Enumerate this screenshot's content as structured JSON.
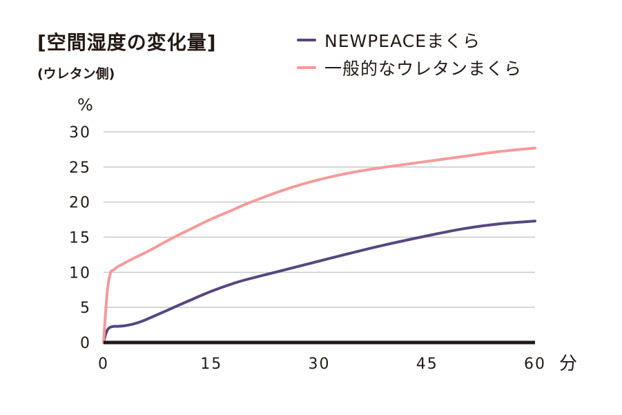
{
  "title": "[空間湿度の変化量]",
  "subtitle": "(ウレタン側)",
  "colors": {
    "newpeace": "#574680",
    "urethane": "#f59a9a",
    "axis": "#231815",
    "grid": "#c8c8c8"
  },
  "chart_data": {
    "type": "line",
    "ylabel": "%",
    "xlabel": "分",
    "xlim": [
      0,
      60
    ],
    "ylim": [
      0,
      30
    ],
    "xticks": [
      0,
      15,
      30,
      45,
      60
    ],
    "yticks": [
      0,
      5,
      10,
      15,
      20,
      25,
      30
    ],
    "grid": true,
    "legend": "top-right",
    "series": [
      {
        "name": "NEWPEACEまくら",
        "color": "#574680",
        "x": [
          0,
          0.3,
          0.6,
          1,
          1.5,
          2,
          3,
          4,
          5,
          6,
          8,
          10,
          12,
          15,
          18,
          20,
          25,
          30,
          35,
          40,
          45,
          50,
          55,
          60
        ],
        "y": [
          0,
          1.2,
          1.9,
          2.2,
          2.3,
          2.3,
          2.4,
          2.6,
          2.9,
          3.3,
          4.2,
          5.1,
          6.0,
          7.3,
          8.4,
          9.0,
          10.3,
          11.6,
          12.9,
          14.1,
          15.2,
          16.2,
          16.9,
          17.3
        ]
      },
      {
        "name": "一般的なウレタンまくら",
        "color": "#f59a9a",
        "x": [
          0,
          0.3,
          0.6,
          1,
          1.5,
          2,
          4,
          6,
          8,
          10,
          12,
          15,
          18,
          20,
          25,
          30,
          35,
          40,
          45,
          50,
          55,
          60
        ],
        "y": [
          0,
          4.5,
          8.0,
          10.0,
          10.4,
          10.8,
          11.9,
          12.9,
          14.0,
          15.1,
          16.1,
          17.6,
          18.9,
          19.8,
          21.7,
          23.2,
          24.3,
          25.1,
          25.8,
          26.5,
          27.2,
          27.7
        ]
      }
    ]
  }
}
